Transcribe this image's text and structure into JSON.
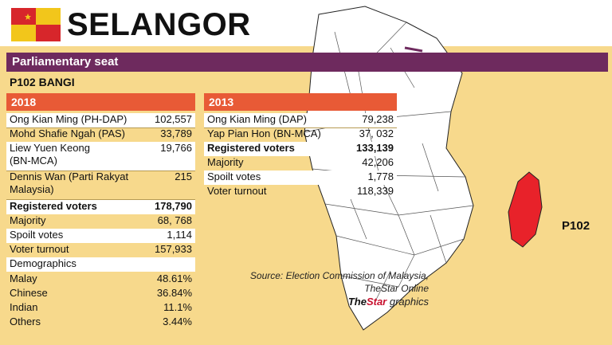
{
  "header": {
    "title": "SELANGOR"
  },
  "colors": {
    "panel": "#f7d98c",
    "purple_bar": "#6e2a5e",
    "year_header": "#e85a36",
    "highlight_seat": "#e8222a",
    "flag_red": "#d7262b",
    "flag_yellow": "#f2c61b"
  },
  "section": {
    "label": "Parliamentary seat",
    "seat_name": "P102 BANGI"
  },
  "y2018": {
    "year": "2018",
    "rows": [
      {
        "label": "Ong Kian Ming (PH-DAP)",
        "value": "102,557"
      },
      {
        "label": "Mohd Shafie Ngah (PAS)",
        "value": "33,789"
      },
      {
        "label": "Liew Yuen Keong\n(BN-MCA)",
        "value": "19,766"
      },
      {
        "label": "Dennis Wan (Parti Rakyat\nMalaysia)",
        "value": "215"
      },
      {
        "label": "Registered voters",
        "value": "178,790"
      },
      {
        "label": "Majority",
        "value": "68, 768"
      },
      {
        "label": "Spoilt votes",
        "value": "1,114"
      },
      {
        "label": "Voter turnout",
        "value": "157,933"
      },
      {
        "label": "Demographics",
        "value": ""
      },
      {
        "label": "Malay",
        "value": "48.61%"
      },
      {
        "label": "Chinese",
        "value": "36.84%"
      },
      {
        "label": "Indian",
        "value": "11.1%"
      },
      {
        "label": "Others",
        "value": "3.44%"
      }
    ]
  },
  "y2013": {
    "year": "2013",
    "rows": [
      {
        "label": "Ong Kian Ming (DAP)",
        "value": "79,238"
      },
      {
        "label": "Yap Pian Hon (BN-MCA)",
        "value": "37, 032"
      },
      {
        "label": "Registered voters",
        "value": "133,139"
      },
      {
        "label": "Majority",
        "value": "42,206"
      },
      {
        "label": "Spoilt votes",
        "value": "1,778"
      },
      {
        "label": "Voter turnout",
        "value": "118,339"
      }
    ]
  },
  "source": {
    "line1": "Source: Election Commission of Malaysia,",
    "line2": "TheStar Online"
  },
  "brand": {
    "the": "The",
    "star": "Star",
    "graphics": " graphics"
  },
  "map": {
    "seat_label": "P102",
    "icon": "selangor-map-icon"
  }
}
